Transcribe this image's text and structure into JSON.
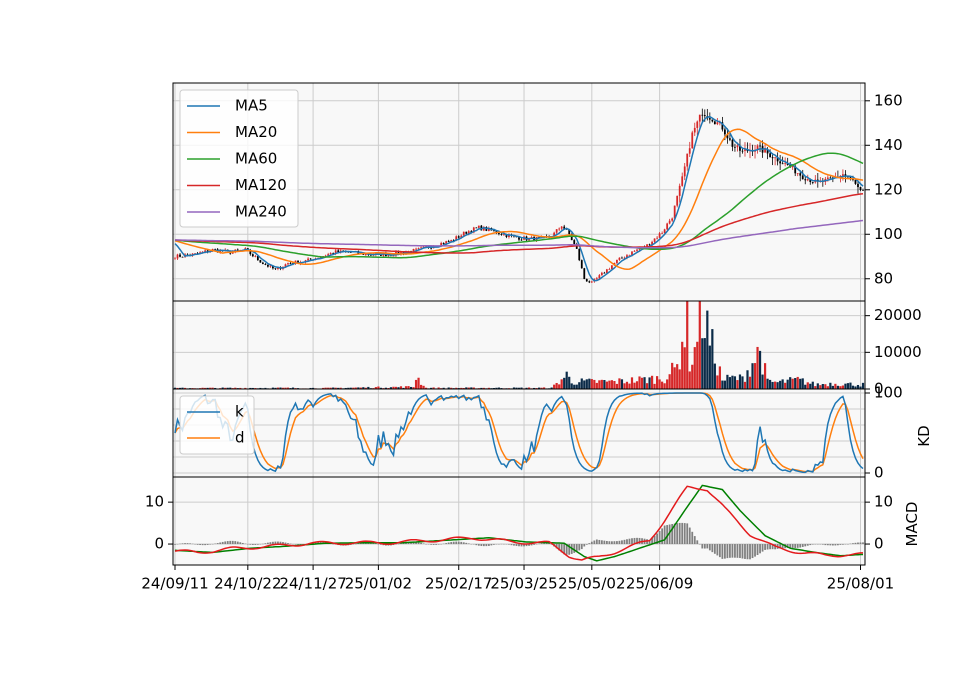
{
  "chart_data": {
    "type": "stock",
    "x_tick_labels": [
      "24/09/11",
      "24/10/22",
      "24/11/27",
      "25/01/02",
      "25/02/17",
      "25/03/25",
      "25/05/02",
      "25/06/09",
      "25/08/01"
    ],
    "colors": {
      "up": "#d62728",
      "down": "#000000",
      "grid": "#cccccc",
      "panel_bg": "#f8f8f8",
      "volume_bar": "#0b2b48"
    },
    "panels": [
      {
        "name": "price",
        "type": "candlestick",
        "y_ticks": [
          80,
          100,
          120,
          140,
          160
        ],
        "ylim": [
          70,
          168
        ],
        "legend": {
          "position": "upper left",
          "entries": [
            "MA5",
            "MA20",
            "MA60",
            "MA120",
            "MA240"
          ]
        },
        "series": [
          {
            "name": "MA5",
            "color": "#1f77b4"
          },
          {
            "name": "MA20",
            "color": "#ff7f0e"
          },
          {
            "name": "MA60",
            "color": "#2ca02c"
          },
          {
            "name": "MA120",
            "color": "#d62728"
          },
          {
            "name": "MA240",
            "color": "#9467bd"
          }
        ],
        "price_path": [
          [
            0,
            90
          ],
          [
            8,
            91
          ],
          [
            15,
            93
          ],
          [
            22,
            92
          ],
          [
            28,
            93
          ],
          [
            35,
            87
          ],
          [
            40,
            84
          ],
          [
            45,
            87
          ],
          [
            52,
            88
          ],
          [
            58,
            90
          ],
          [
            64,
            92
          ],
          [
            70,
            92
          ],
          [
            76,
            91
          ],
          [
            80,
            91
          ],
          [
            86,
            91
          ],
          [
            92,
            92
          ],
          [
            97,
            93
          ],
          [
            103,
            95
          ],
          [
            110,
            97
          ],
          [
            116,
            101
          ],
          [
            121,
            103
          ],
          [
            128,
            101
          ],
          [
            134,
            99
          ],
          [
            140,
            98
          ],
          [
            146,
            98
          ],
          [
            150,
            99
          ],
          [
            154,
            104
          ],
          [
            157,
            100
          ],
          [
            160,
            93
          ],
          [
            163,
            80
          ],
          [
            166,
            78
          ],
          [
            170,
            82
          ],
          [
            176,
            88
          ],
          [
            182,
            92
          ],
          [
            188,
            95
          ],
          [
            194,
            101
          ],
          [
            198,
            108
          ],
          [
            202,
            125
          ],
          [
            206,
            145
          ],
          [
            210,
            155
          ],
          [
            214,
            152
          ],
          [
            218,
            148
          ],
          [
            222,
            140
          ],
          [
            226,
            137
          ],
          [
            232,
            139
          ],
          [
            238,
            135
          ],
          [
            244,
            131
          ],
          [
            250,
            126
          ],
          [
            256,
            123
          ],
          [
            262,
            125
          ],
          [
            266,
            127
          ],
          [
            270,
            124
          ],
          [
            273,
            119
          ]
        ]
      },
      {
        "name": "volume",
        "type": "bar",
        "y_ticks": [
          0,
          10000,
          20000
        ],
        "ylim": [
          0,
          24000
        ],
        "volume_path": [
          [
            0,
            250
          ],
          [
            40,
            300
          ],
          [
            60,
            250
          ],
          [
            95,
            600
          ],
          [
            96,
            3500
          ],
          [
            100,
            300
          ],
          [
            150,
            300
          ],
          [
            156,
            3800
          ],
          [
            158,
            2000
          ],
          [
            175,
            2000
          ],
          [
            195,
            3000
          ],
          [
            200,
            6000
          ],
          [
            202,
            14000
          ],
          [
            204,
            18000
          ],
          [
            205,
            8000
          ],
          [
            207,
            10000
          ],
          [
            209,
            23000
          ],
          [
            211,
            19000
          ],
          [
            213,
            13000
          ],
          [
            215,
            9000
          ],
          [
            218,
            2500
          ],
          [
            222,
            3000
          ],
          [
            226,
            2800
          ],
          [
            233,
            10500
          ],
          [
            236,
            2000
          ],
          [
            240,
            1800
          ],
          [
            248,
            2500
          ],
          [
            255,
            1200
          ],
          [
            262,
            1500
          ],
          [
            273,
            1200
          ]
        ]
      },
      {
        "name": "kd",
        "type": "line",
        "ylabel": "KD",
        "y_ticks": [
          0,
          100
        ],
        "ylim": [
          -5,
          105
        ],
        "legend": {
          "position": "upper left",
          "entries": [
            "k",
            "d"
          ]
        },
        "series": [
          {
            "name": "k",
            "color": "#1f77b4"
          },
          {
            "name": "d",
            "color": "#ff7f0e"
          }
        ]
      },
      {
        "name": "macd",
        "type": "line+bar",
        "ylabel": "MACD",
        "y_ticks": [
          0,
          10
        ],
        "ylim": [
          -5,
          16
        ],
        "series_colors": {
          "dif": "#e31a1c",
          "macd": "#008000",
          "osc": "#808080"
        },
        "macd_path": [
          [
            0,
            -1.5
          ],
          [
            15,
            -2
          ],
          [
            30,
            -1
          ],
          [
            45,
            -0.5
          ],
          [
            60,
            0.2
          ],
          [
            75,
            0.3
          ],
          [
            90,
            0.3
          ],
          [
            105,
            0.8
          ],
          [
            125,
            1.5
          ],
          [
            140,
            0.5
          ],
          [
            155,
            0.2
          ],
          [
            163,
            -3
          ],
          [
            168,
            -4
          ],
          [
            175,
            -3
          ],
          [
            185,
            -1
          ],
          [
            195,
            1
          ],
          [
            203,
            8
          ],
          [
            210,
            14
          ],
          [
            218,
            13
          ],
          [
            225,
            8
          ],
          [
            235,
            2
          ],
          [
            245,
            -1
          ],
          [
            255,
            -2
          ],
          [
            265,
            -2.8
          ],
          [
            273,
            -2.5
          ]
        ]
      }
    ]
  }
}
